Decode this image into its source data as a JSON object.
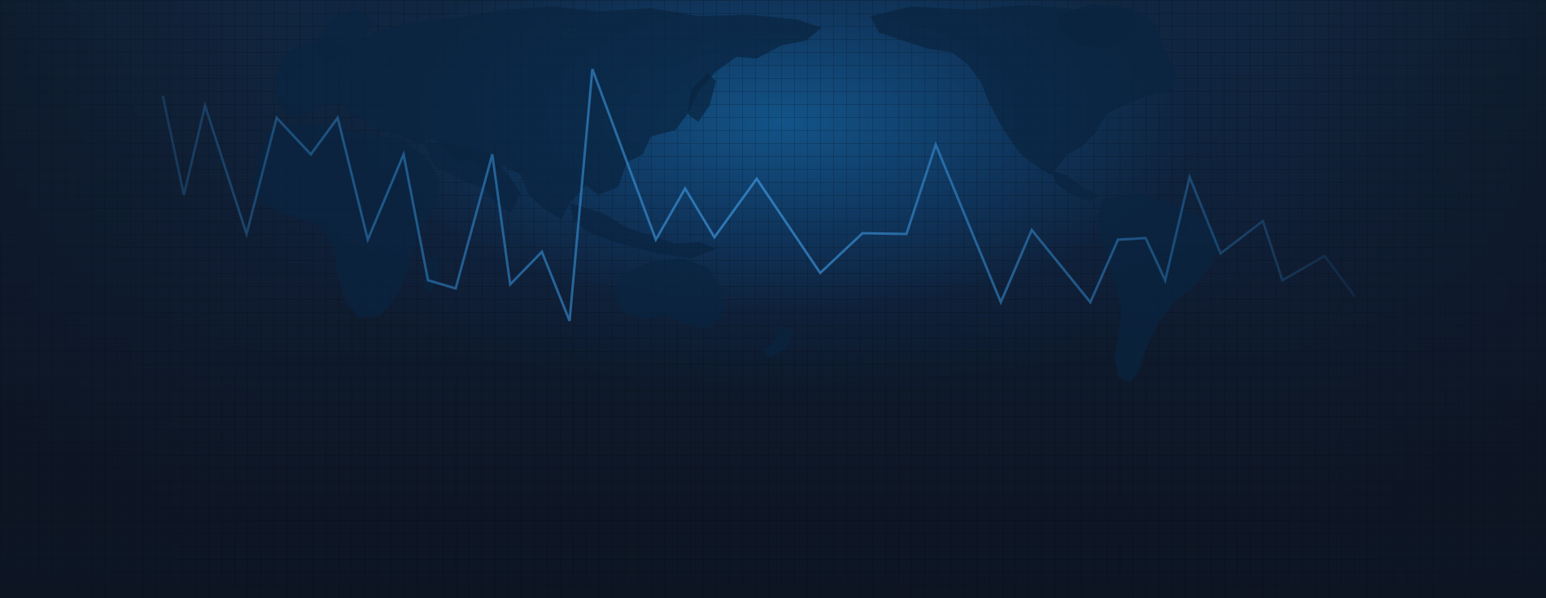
{
  "scene": {
    "description_free": true,
    "colors": {
      "background_dark": "#0e1726",
      "glow_center": "#13568c",
      "landmass": "#0a2440",
      "pulse_line": "#2e7fc0"
    },
    "icons": [
      "world-map-graphic",
      "pulse-line-graphic"
    ]
  }
}
